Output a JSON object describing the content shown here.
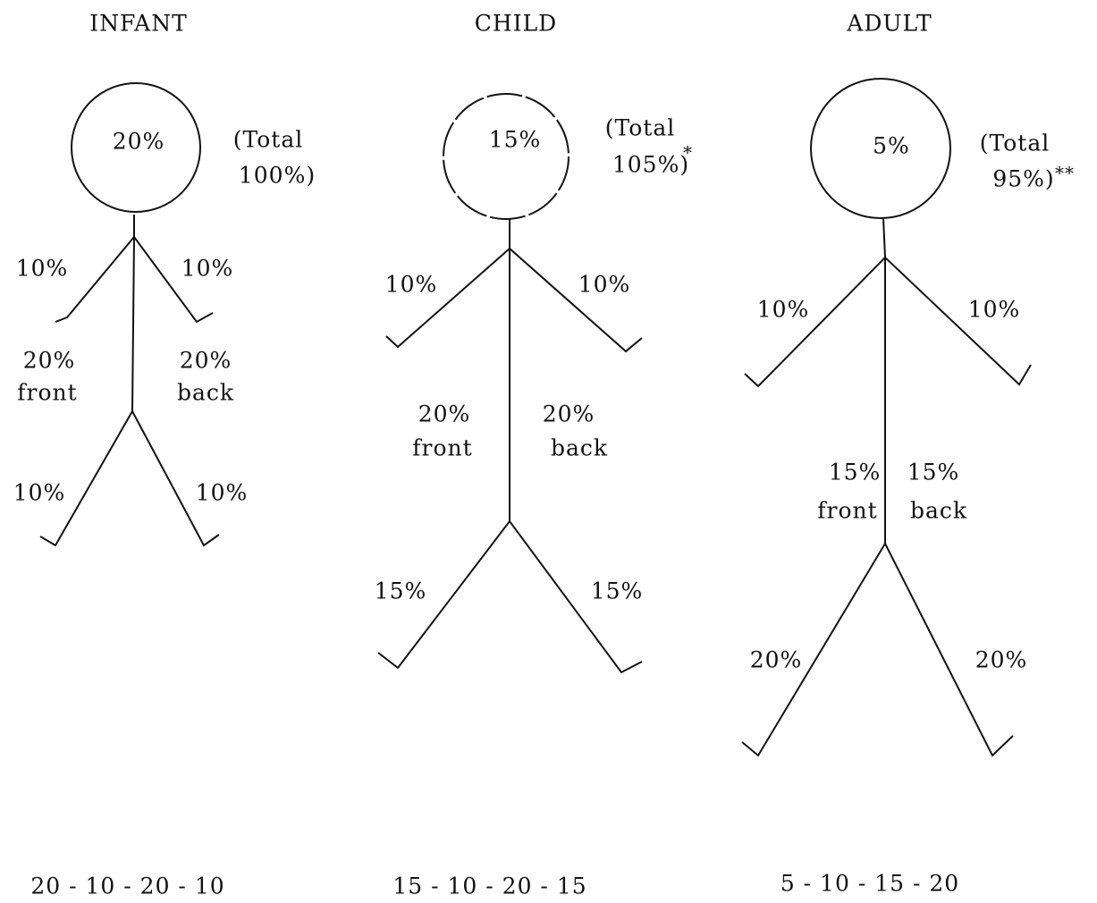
{
  "figures": [
    {
      "title": "INFANT",
      "head": "20%",
      "total": [
        "(Total",
        "100%)"
      ],
      "arm_left": "10%",
      "arm_right": "10%",
      "torso_left": [
        "20%",
        "front"
      ],
      "torso_right": [
        "20%",
        "back"
      ],
      "leg_left": "10%",
      "leg_right": "10%",
      "summary": "20 - 10 - 20 - 10"
    },
    {
      "title": "CHILD",
      "head": "15%",
      "total": [
        "(Total",
        "105%)"
      ],
      "note": "*",
      "arm_left": "10%",
      "arm_right": "10%",
      "torso_left": [
        "20%",
        "front"
      ],
      "torso_right": [
        "20%",
        "back"
      ],
      "leg_left": "15%",
      "leg_right": "15%",
      "summary": "15 - 10 - 20 - 15"
    },
    {
      "title": "ADULT",
      "head": "5%",
      "total": [
        "(Total",
        "95%)"
      ],
      "note": "**",
      "arm_left": "10%",
      "arm_right": "10%",
      "torso_left": [
        "15%",
        "front"
      ],
      "torso_right": [
        "15%",
        "back"
      ],
      "leg_left": "20%",
      "leg_right": "20%",
      "summary": "5 - 10 - 15 - 20"
    }
  ]
}
